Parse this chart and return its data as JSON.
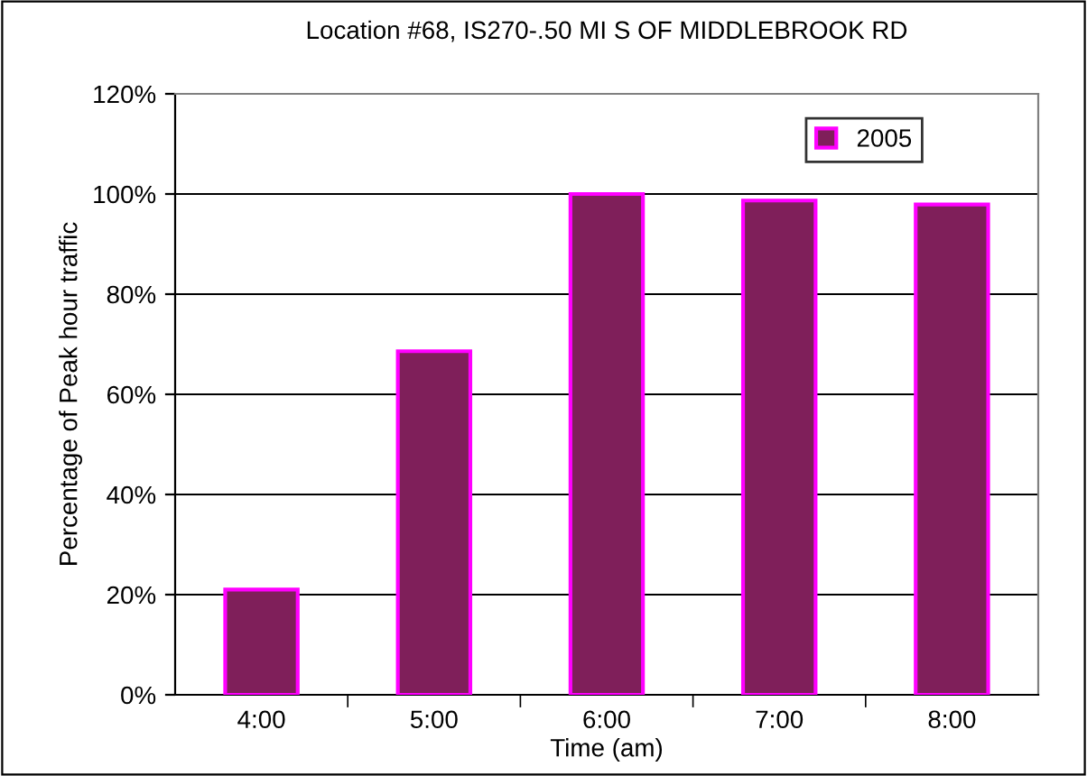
{
  "chart_data": {
    "type": "bar",
    "title": "Location #68, IS270-.50 MI S OF MIDDLEBROOK RD",
    "xlabel": "Time (am)",
    "ylabel": "Percentage of Peak hour traffic",
    "categories": [
      "4:00",
      "5:00",
      "6:00",
      "7:00",
      "8:00"
    ],
    "series": [
      {
        "name": "2005",
        "color": "#7f1f5a",
        "values": [
          21,
          68.6,
          100,
          98.7,
          97.9
        ]
      }
    ],
    "ylim": [
      0,
      120
    ],
    "yticks": [
      {
        "value": 0,
        "label": "0%"
      },
      {
        "value": 20,
        "label": "20%"
      },
      {
        "value": 40,
        "label": "40%"
      },
      {
        "value": 60,
        "label": "60%"
      },
      {
        "value": 80,
        "label": "80%"
      },
      {
        "value": 100,
        "label": "100%"
      },
      {
        "value": 120,
        "label": "120%"
      }
    ],
    "grid": "y",
    "legend": "top right"
  }
}
